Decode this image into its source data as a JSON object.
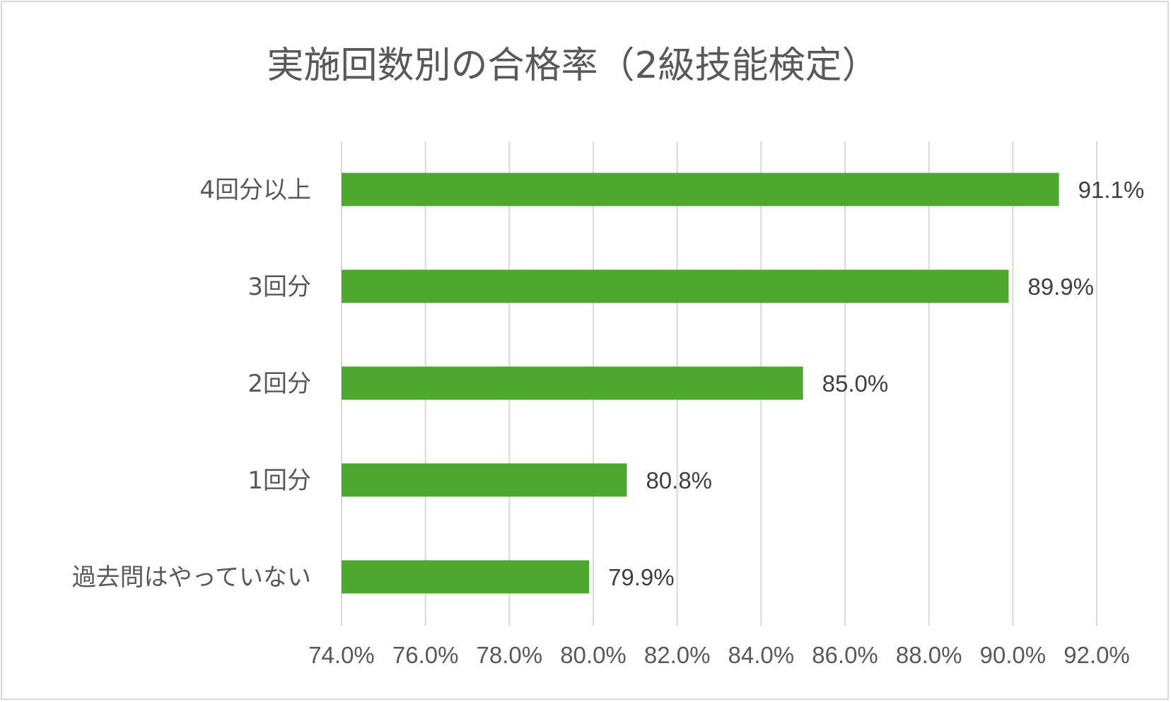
{
  "chart_data": {
    "type": "bar",
    "orientation": "horizontal",
    "title": "実施回数別の合格率（2級技能検定）",
    "categories": [
      "4回分以上",
      "3回分",
      "2回分",
      "1回分",
      "過去問はやっていない"
    ],
    "values": [
      91.1,
      89.9,
      85.0,
      80.8,
      79.9
    ],
    "data_labels": [
      "91.1%",
      "89.9%",
      "85.0%",
      "80.8%",
      "79.9%"
    ],
    "xlim": [
      74.0,
      92.0
    ],
    "x_ticks": [
      74.0,
      76.0,
      78.0,
      80.0,
      82.0,
      84.0,
      86.0,
      88.0,
      90.0,
      92.0
    ],
    "x_tick_labels": [
      "74.0%",
      "76.0%",
      "78.0%",
      "80.0%",
      "82.0%",
      "84.0%",
      "86.0%",
      "88.0%",
      "90.0%",
      "92.0%"
    ],
    "xlabel": "",
    "ylabel": "",
    "grid": "vertical",
    "legend": "none",
    "bar_color": "#4ea72e"
  }
}
